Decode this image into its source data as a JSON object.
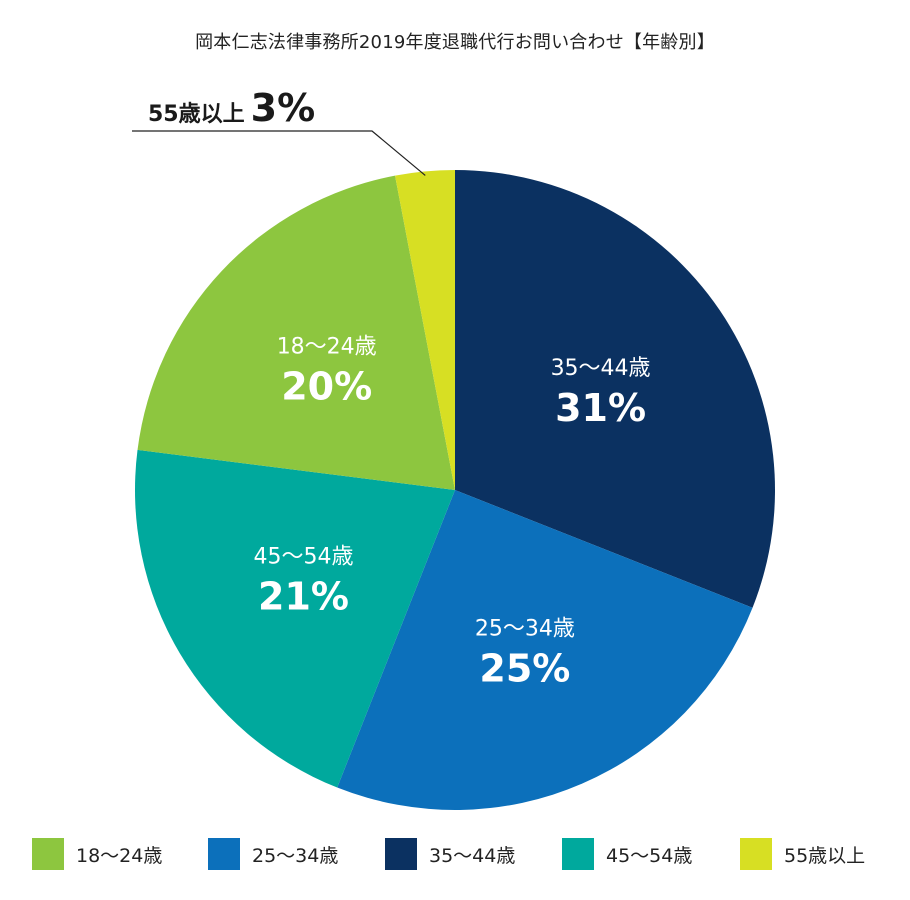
{
  "chart_data": {
    "type": "pie",
    "title": "岡本仁志法律事務所2019年度退職代行お問い合わせ【年齢別】",
    "start": "12 o'clock",
    "direction": "clockwise",
    "slices": [
      {
        "label": "35〜44歳",
        "value": 31,
        "pct_text": "31%",
        "color": "#0b3161"
      },
      {
        "label": "25〜34歳",
        "value": 25,
        "pct_text": "25%",
        "color": "#0c70bb"
      },
      {
        "label": "45〜54歳",
        "value": 21,
        "pct_text": "21%",
        "color": "#00a99d"
      },
      {
        "label": "18〜24歳",
        "value": 20,
        "pct_text": "20%",
        "color": "#8dc63f"
      },
      {
        "label": "55歳以上",
        "value": 3,
        "pct_text": "3%",
        "color": "#d7df23"
      }
    ],
    "callout": {
      "label": "55歳以上",
      "pct_text": "3%"
    },
    "legend": {
      "placement": "bottom",
      "items": [
        {
          "label": "18〜24歳",
          "color": "#8dc63f"
        },
        {
          "label": "25〜34歳",
          "color": "#0c70bb"
        },
        {
          "label": "35〜44歳",
          "color": "#0b3161"
        },
        {
          "label": "45〜54歳",
          "color": "#00a99d"
        },
        {
          "label": "55歳以上",
          "color": "#d7df23"
        }
      ]
    }
  }
}
